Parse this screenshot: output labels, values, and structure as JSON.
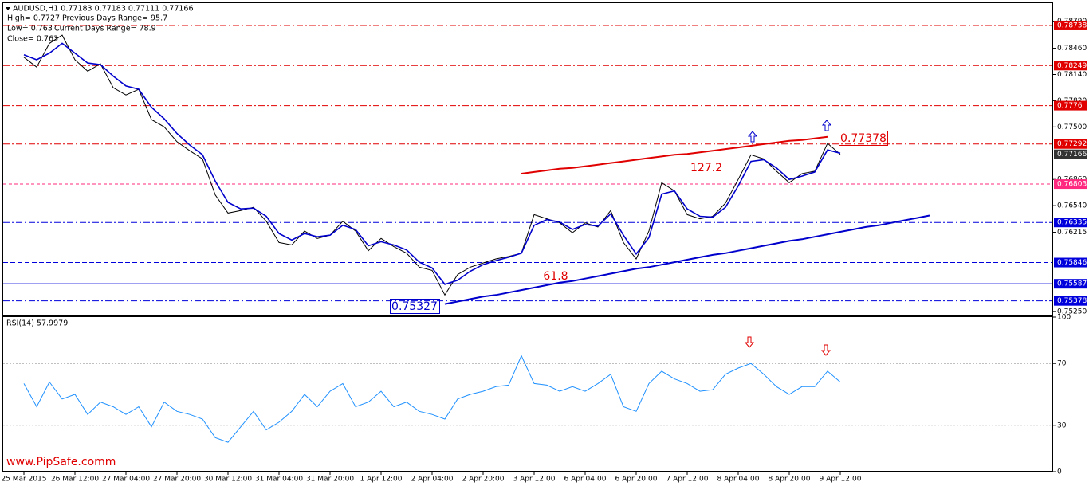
{
  "chart_data": [
    {
      "type": "line",
      "header": [
        "AUDUSD,H1  0.77183 0.77183 0.77111 0.77166",
        "High= 0.7727",
        "Previous Days Range= 95.7",
        "Low= 0.763",
        "Current Days Range= 78.9",
        "Close= 0.763"
      ],
      "categories": [
        "25 Mar 2015",
        null,
        null,
        null,
        "26 Mar 12:00",
        null,
        null,
        null,
        "27 Mar 04:00",
        null,
        null,
        null,
        "27 Mar 20:00",
        null,
        null,
        null,
        "30 Mar 12:00",
        null,
        null,
        null,
        "31 Mar 04:00",
        null,
        null,
        null,
        "31 Mar 20:00",
        null,
        null,
        null,
        "1 Apr 12:00",
        null,
        null,
        null,
        "2 Apr 04:00",
        null,
        null,
        null,
        "2 Apr 20:00",
        null,
        null,
        null,
        "3 Apr 12:00",
        null,
        null,
        null,
        "6 Apr 04:00",
        null,
        null,
        null,
        "6 Apr 20:00",
        null,
        null,
        null,
        "7 Apr 12:00",
        null,
        null,
        null,
        "8 Apr 04:00",
        null,
        null,
        null,
        "8 Apr 20:00",
        null,
        null,
        null,
        "9 Apr 12:00",
        null,
        null,
        null,
        null,
        null,
        null,
        null,
        null,
        null,
        null,
        null,
        null,
        null,
        null,
        null
      ],
      "series": [
        {
          "color": "#000000",
          "values": [
            0.7835,
            0.7823,
            0.7852,
            0.7862,
            0.7832,
            0.7818,
            0.7827,
            0.7798,
            0.7789,
            0.7796,
            0.7759,
            0.775,
            0.7732,
            0.7721,
            0.7711,
            0.7667,
            0.7645,
            0.7648,
            0.7652,
            0.7635,
            0.7609,
            0.7606,
            0.7623,
            0.7614,
            0.7618,
            0.7635,
            0.7623,
            0.7599,
            0.7614,
            0.7604,
            0.7596,
            0.7579,
            0.7575,
            0.7545,
            0.757,
            0.7579,
            0.7584,
            0.7589,
            0.7592,
            0.7596,
            0.7643,
            0.7638,
            0.7633,
            0.7621,
            0.7633,
            0.7628,
            0.7648,
            0.7609,
            0.7589,
            0.7623,
            0.7682,
            0.7672,
            0.7643,
            0.7638,
            0.7641,
            0.7657,
            0.7686,
            0.7716,
            0.7711,
            0.7696,
            0.7682,
            0.7693,
            0.7696,
            0.773,
            0.77166,
            null,
            null,
            null,
            null,
            null,
            null,
            null,
            null,
            null,
            null,
            null,
            null,
            null,
            null,
            null
          ]
        },
        {
          "color": "#0000cc",
          "values": [
            0.7838,
            0.7832,
            0.784,
            0.7852,
            0.784,
            0.7828,
            0.7826,
            0.7812,
            0.78,
            0.7796,
            0.7774,
            0.776,
            0.7742,
            0.7728,
            0.7716,
            0.7684,
            0.7658,
            0.765,
            0.7651,
            0.7641,
            0.762,
            0.7612,
            0.762,
            0.7616,
            0.7618,
            0.763,
            0.7625,
            0.7605,
            0.761,
            0.7606,
            0.76,
            0.7585,
            0.7578,
            0.7558,
            0.7563,
            0.7574,
            0.7582,
            0.7587,
            0.7591,
            0.7596,
            0.763,
            0.7637,
            0.7634,
            0.7625,
            0.7631,
            0.7629,
            0.7644,
            0.7618,
            0.7595,
            0.7615,
            0.7668,
            0.7672,
            0.765,
            0.7641,
            0.764,
            0.7652,
            0.7678,
            0.7708,
            0.771,
            0.77,
            0.7686,
            0.769,
            0.7695,
            0.7722,
            0.7718,
            null,
            null,
            null,
            null,
            null,
            null,
            null,
            null,
            null,
            null,
            null,
            null,
            null,
            null,
            null
          ]
        }
      ],
      "trendlines": [
        {
          "color": "#e00000",
          "values": [
            null,
            null,
            null,
            null,
            null,
            null,
            null,
            null,
            null,
            null,
            null,
            null,
            null,
            null,
            null,
            null,
            null,
            null,
            null,
            null,
            null,
            null,
            null,
            null,
            null,
            null,
            null,
            null,
            null,
            null,
            null,
            null,
            null,
            null,
            null,
            null,
            null,
            null,
            null,
            0.7693,
            0.7695,
            0.7697,
            0.7699,
            0.77,
            0.7702,
            0.7704,
            0.7706,
            0.7708,
            0.771,
            0.7712,
            0.7714,
            0.7716,
            0.7717,
            0.7719,
            0.7721,
            0.7723,
            0.7725,
            0.7727,
            0.7729,
            0.7731,
            0.7733,
            0.7734,
            0.7736,
            0.7738,
            null,
            null,
            null,
            null,
            null,
            null,
            null,
            null,
            null,
            null,
            null,
            null,
            null,
            null,
            null,
            null
          ]
        },
        {
          "color": "#0000cc",
          "values": [
            null,
            null,
            null,
            null,
            null,
            null,
            null,
            null,
            null,
            null,
            null,
            null,
            null,
            null,
            null,
            null,
            null,
            null,
            null,
            null,
            null,
            null,
            null,
            null,
            null,
            null,
            null,
            null,
            null,
            null,
            null,
            null,
            null,
            0.7534,
            0.7537,
            0.754,
            0.7543,
            0.7545,
            0.7548,
            0.7551,
            0.7554,
            0.7557,
            0.756,
            0.7562,
            0.7565,
            0.7568,
            0.7571,
            0.7574,
            0.7577,
            0.7579,
            0.7582,
            0.7585,
            0.7588,
            0.7591,
            0.7594,
            0.7596,
            0.7599,
            0.7602,
            0.7605,
            0.7608,
            0.7611,
            0.7613,
            0.7616,
            0.7619,
            0.7622,
            0.7625,
            0.7628,
            0.763,
            0.7633,
            0.7636,
            0.7639,
            0.7642,
            null,
            null,
            null,
            null,
            null,
            null,
            null,
            null
          ]
        }
      ],
      "levels": [
        {
          "value": 0.78738,
          "color": "#e00000",
          "dash": "8 3 2 3"
        },
        {
          "value": 0.78249,
          "color": "#e00000",
          "dash": "8 3 2 3"
        },
        {
          "value": 0.7776,
          "color": "#e00000",
          "dash": "8 3 2 3"
        },
        {
          "value": 0.77292,
          "color": "#e00000",
          "dash": "8 3 2 3"
        },
        {
          "value": 0.76803,
          "color": "#ff2a7f",
          "dash": "4 3"
        },
        {
          "value": 0.76335,
          "color": "#0000dd",
          "dash": "8 3 2 3"
        },
        {
          "value": 0.75846,
          "color": "#0000dd",
          "dash": "6 3"
        },
        {
          "value": 0.75587,
          "color": "#0000dd",
          "dash": "none"
        },
        {
          "value": 0.75378,
          "color": "#0000dd",
          "dash": "8 3 2 3"
        }
      ],
      "current_price": 0.77166,
      "annotations": [
        "0.77378",
        "0.75327",
        "127.2",
        "61.8",
        "www.PipSafe.comm"
      ],
      "ylim": [
        0.752,
        0.79
      ],
      "yticks": [
        {
          "value": 0.7879,
          "label": "0.78790"
        },
        {
          "value": 0.7846,
          "label": "0.78460"
        },
        {
          "value": 0.7814,
          "label": "0.78140"
        },
        {
          "value": 0.7782,
          "label": "0.77820"
        },
        {
          "value": 0.775,
          "label": "0.77500"
        },
        {
          "value": 0.7686,
          "label": "0.76860"
        },
        {
          "value": 0.7654,
          "label": "0.76540"
        },
        0.76215,
        {
          "value": 0.7525,
          "label": "0.75250"
        }
      ]
    },
    {
      "type": "line",
      "title": "RSI(14) 57.9979",
      "series": [
        {
          "color": "#1e90ff",
          "values": [
            57,
            42,
            58,
            47,
            50,
            37,
            45,
            42,
            37,
            42,
            29,
            45,
            39,
            37,
            34,
            22,
            19,
            29,
            39,
            27,
            32,
            39,
            50,
            42,
            52,
            57,
            42,
            45,
            52,
            42,
            45,
            39,
            37,
            34,
            47,
            50,
            52,
            55,
            56,
            75,
            57,
            56,
            52,
            55,
            52,
            57,
            63,
            42,
            39,
            57,
            65,
            60,
            57,
            52,
            53,
            63,
            67,
            70,
            63,
            55,
            50,
            55,
            55,
            65,
            58,
            null,
            null,
            null,
            null,
            null,
            null,
            null,
            null,
            null,
            null,
            null,
            null,
            null,
            null,
            null
          ]
        }
      ],
      "ylim": [
        0,
        100
      ],
      "yticks": [
        100,
        70,
        30,
        0
      ],
      "grid": true
    }
  ]
}
